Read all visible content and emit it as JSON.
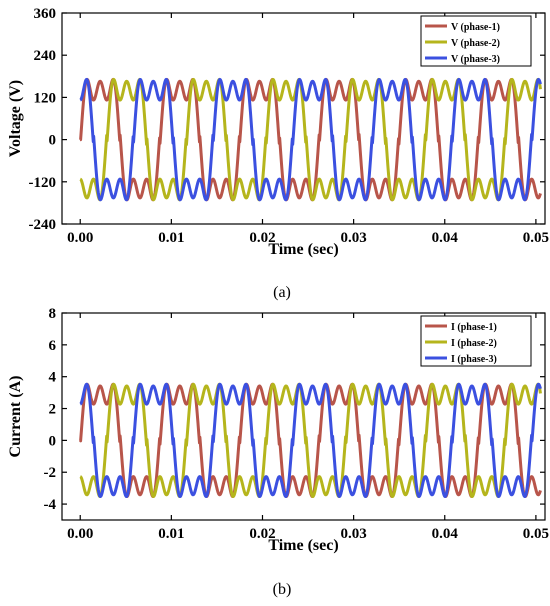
{
  "chart_data": [
    {
      "type": "line",
      "panel_caption": "(a)",
      "xlabel": "Time (sec)",
      "ylabel": "Voltage (V)",
      "xlim": [
        -0.002,
        0.051
      ],
      "ylim": [
        -240,
        360
      ],
      "x_ticks": [
        0.0,
        0.01,
        0.02,
        0.03,
        0.04,
        0.05
      ],
      "x_tick_labels": [
        "0.00",
        "0.01",
        "0.02",
        "0.03",
        "0.04",
        "0.05"
      ],
      "y_ticks": [
        -240,
        -120,
        0,
        120,
        240,
        360
      ],
      "y_tick_labels": [
        "-240",
        "-120",
        "0",
        "120",
        "240",
        "360"
      ],
      "legend_position": "top-right",
      "x_range": [
        0.0,
        0.0505
      ],
      "frequency_hz": 114.4,
      "series": [
        {
          "name": "V (phase-1)",
          "color": "#b8554a",
          "amplitude": 215,
          "ripple": 25,
          "phase_deg": 0
        },
        {
          "name": "V (phase-2)",
          "color": "#b5b51c",
          "amplitude": 215,
          "ripple": 25,
          "phase_deg": 120
        },
        {
          "name": "V (phase-3)",
          "color": "#3b50e0",
          "amplitude": 215,
          "ripple": 25,
          "phase_deg": 240
        }
      ]
    },
    {
      "type": "line",
      "panel_caption": "(b)",
      "xlabel": "Time (sec)",
      "ylabel": "Current (A)",
      "xlim": [
        -0.002,
        0.051
      ],
      "ylim": [
        -5,
        8
      ],
      "x_ticks": [
        0.0,
        0.01,
        0.02,
        0.03,
        0.04,
        0.05
      ],
      "x_tick_labels": [
        "0.00",
        "0.01",
        "0.02",
        "0.03",
        "0.04",
        "0.05"
      ],
      "y_ticks": [
        -4,
        -2,
        0,
        2,
        4,
        6,
        8
      ],
      "y_tick_labels": [
        "-4",
        "-2",
        "0",
        "2",
        "4",
        "6",
        "8"
      ],
      "legend_position": "top-right",
      "x_range": [
        0.0,
        0.0505
      ],
      "frequency_hz": 114.4,
      "series": [
        {
          "name": "I (phase-1)",
          "color": "#b8554a",
          "amplitude": 4.4,
          "ripple": 0.55,
          "phase_deg": 0
        },
        {
          "name": "I (phase-2)",
          "color": "#b5b51c",
          "amplitude": 4.4,
          "ripple": 0.55,
          "phase_deg": 120
        },
        {
          "name": "I (phase-3)",
          "color": "#3b50e0",
          "amplitude": 4.4,
          "ripple": 0.55,
          "phase_deg": 240
        }
      ]
    }
  ]
}
